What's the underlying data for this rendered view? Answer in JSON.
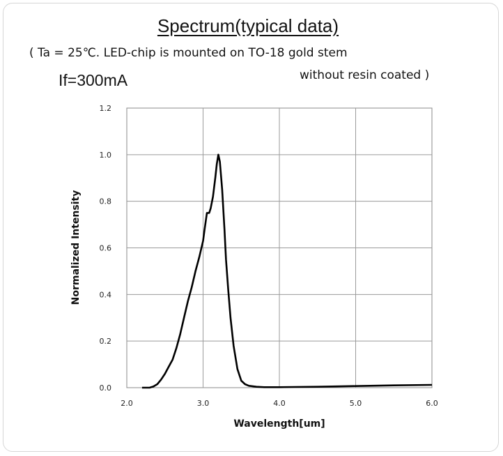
{
  "page": {
    "title": "Spectrum(typical data)",
    "condition_line1": "( Ta = 25℃. LED-chip is mounted on TO-18 gold stem",
    "condition_line2": "without resin coated )",
    "current_label": "If=300mA"
  },
  "chart_data": {
    "type": "line",
    "title": "Spectrum(typical data)",
    "xlabel": "Wavelength[um]",
    "ylabel": "Normalized Intensity",
    "xlim": [
      2.0,
      6.0
    ],
    "ylim": [
      0.0,
      1.2
    ],
    "xticks": [
      "2.0",
      "3.0",
      "4.0",
      "5.0",
      "6.0"
    ],
    "yticks": [
      "0.0",
      "0.2",
      "0.4",
      "0.6",
      "0.8",
      "1.0",
      "1.2"
    ],
    "grid": true,
    "legend": "none",
    "series": [
      {
        "color": "#000000",
        "x": [
          2.2,
          2.3,
          2.35,
          2.4,
          2.45,
          2.5,
          2.55,
          2.6,
          2.65,
          2.7,
          2.75,
          2.8,
          2.85,
          2.9,
          2.95,
          3.0,
          3.02,
          3.05,
          3.08,
          3.1,
          3.13,
          3.16,
          3.18,
          3.2,
          3.22,
          3.25,
          3.28,
          3.3,
          3.33,
          3.36,
          3.4,
          3.45,
          3.5,
          3.55,
          3.6,
          3.7,
          3.8,
          4.0,
          4.2,
          4.5,
          5.0,
          5.5,
          6.0
        ],
        "y": [
          0.0,
          0.0,
          0.005,
          0.015,
          0.035,
          0.06,
          0.09,
          0.12,
          0.17,
          0.23,
          0.3,
          0.37,
          0.43,
          0.5,
          0.56,
          0.63,
          0.68,
          0.75,
          0.75,
          0.77,
          0.82,
          0.9,
          0.96,
          1.0,
          0.97,
          0.85,
          0.68,
          0.55,
          0.42,
          0.3,
          0.18,
          0.08,
          0.03,
          0.015,
          0.008,
          0.004,
          0.002,
          0.002,
          0.003,
          0.004,
          0.007,
          0.01,
          0.012
        ]
      }
    ]
  }
}
